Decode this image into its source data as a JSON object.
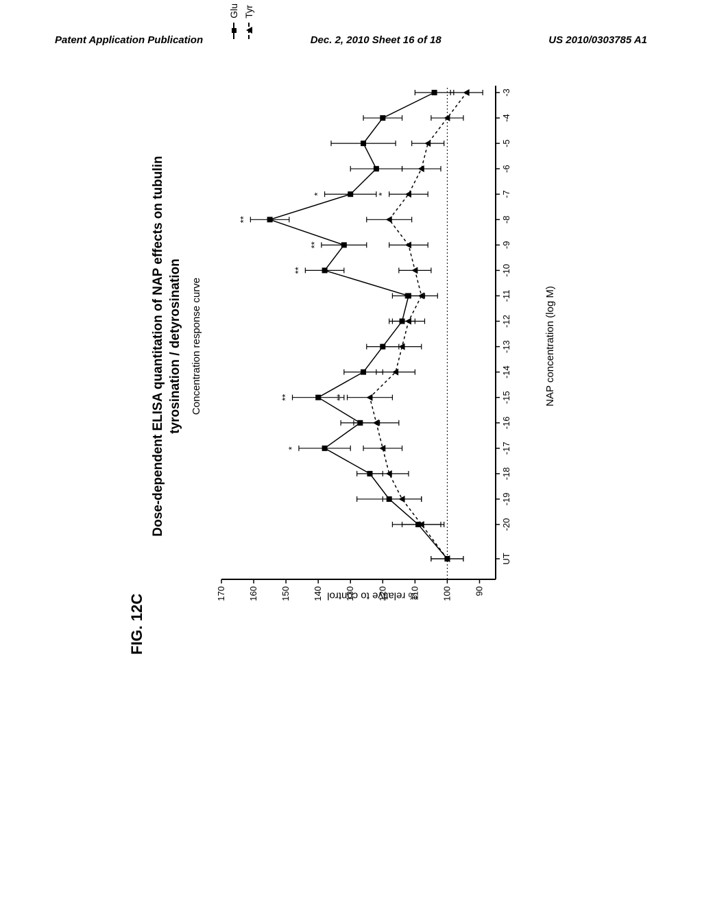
{
  "header": {
    "left": "Patent Application Publication",
    "center": "Dec. 2, 2010  Sheet 16 of 18",
    "right": "US 2010/0303785 A1"
  },
  "figure": {
    "label": "FIG. 12C",
    "title_line1": "Dose-dependent ELISA quantitation of NAP effects on tubulin",
    "title_line2": "tyrosination / detyrosination",
    "chart_title": "Concentration response curve"
  },
  "chart": {
    "type": "line",
    "ylabel": "% relative to control",
    "xlabel": "NAP concentration (log M)",
    "ylim": [
      85,
      170
    ],
    "ytick_step": 10,
    "yticks": [
      90,
      100,
      110,
      120,
      130,
      140,
      150,
      160,
      170
    ],
    "x_categories": [
      "UT",
      "-20",
      "-19",
      "-18",
      "-17",
      "-16",
      "-15",
      "-14",
      "-13",
      "-12",
      "-11",
      "-10",
      "-9",
      "-8",
      "-7",
      "-6",
      "-5",
      "-4",
      "-3"
    ],
    "baseline_y": 100,
    "series": [
      {
        "name": "Glu",
        "marker": "square",
        "dash": false,
        "color": "#000000",
        "y": [
          100,
          109,
          118,
          124,
          138,
          127,
          140,
          126,
          120,
          114,
          112,
          138,
          132,
          155,
          130,
          122,
          126,
          120,
          104
        ],
        "err": [
          5,
          8,
          10,
          4,
          8,
          6,
          8,
          6,
          5,
          4,
          5,
          6,
          7,
          6,
          8,
          8,
          10,
          6,
          6
        ],
        "sig": [
          "",
          "",
          "",
          "",
          "*",
          "",
          "**",
          "",
          "",
          "",
          "",
          "**",
          "**",
          "**",
          "*",
          "",
          "",
          "",
          ""
        ]
      },
      {
        "name": "Tyr",
        "marker": "triangle",
        "dash": true,
        "color": "#000000",
        "y": [
          100,
          108,
          114,
          118,
          120,
          122,
          124,
          116,
          114,
          112,
          108,
          110,
          112,
          118,
          112,
          108,
          106,
          100,
          94
        ],
        "err": [
          5,
          6,
          6,
          6,
          6,
          7,
          7,
          6,
          6,
          5,
          5,
          5,
          6,
          7,
          6,
          6,
          5,
          5,
          5
        ],
        "sig": [
          "",
          "",
          "",
          "",
          "",
          "",
          "**",
          "",
          "",
          "",
          "",
          "",
          "",
          "",
          "*",
          "",
          "",
          "",
          ""
        ]
      }
    ],
    "legend": [
      {
        "label": "Glu",
        "marker": "square",
        "dash": false
      },
      {
        "label": "Tyr",
        "marker": "triangle",
        "dash": true
      }
    ],
    "background_color": "#ffffff",
    "line_color": "#000000",
    "axis_fontsize": 13,
    "label_fontsize": 15,
    "title_fontsize": 19
  }
}
